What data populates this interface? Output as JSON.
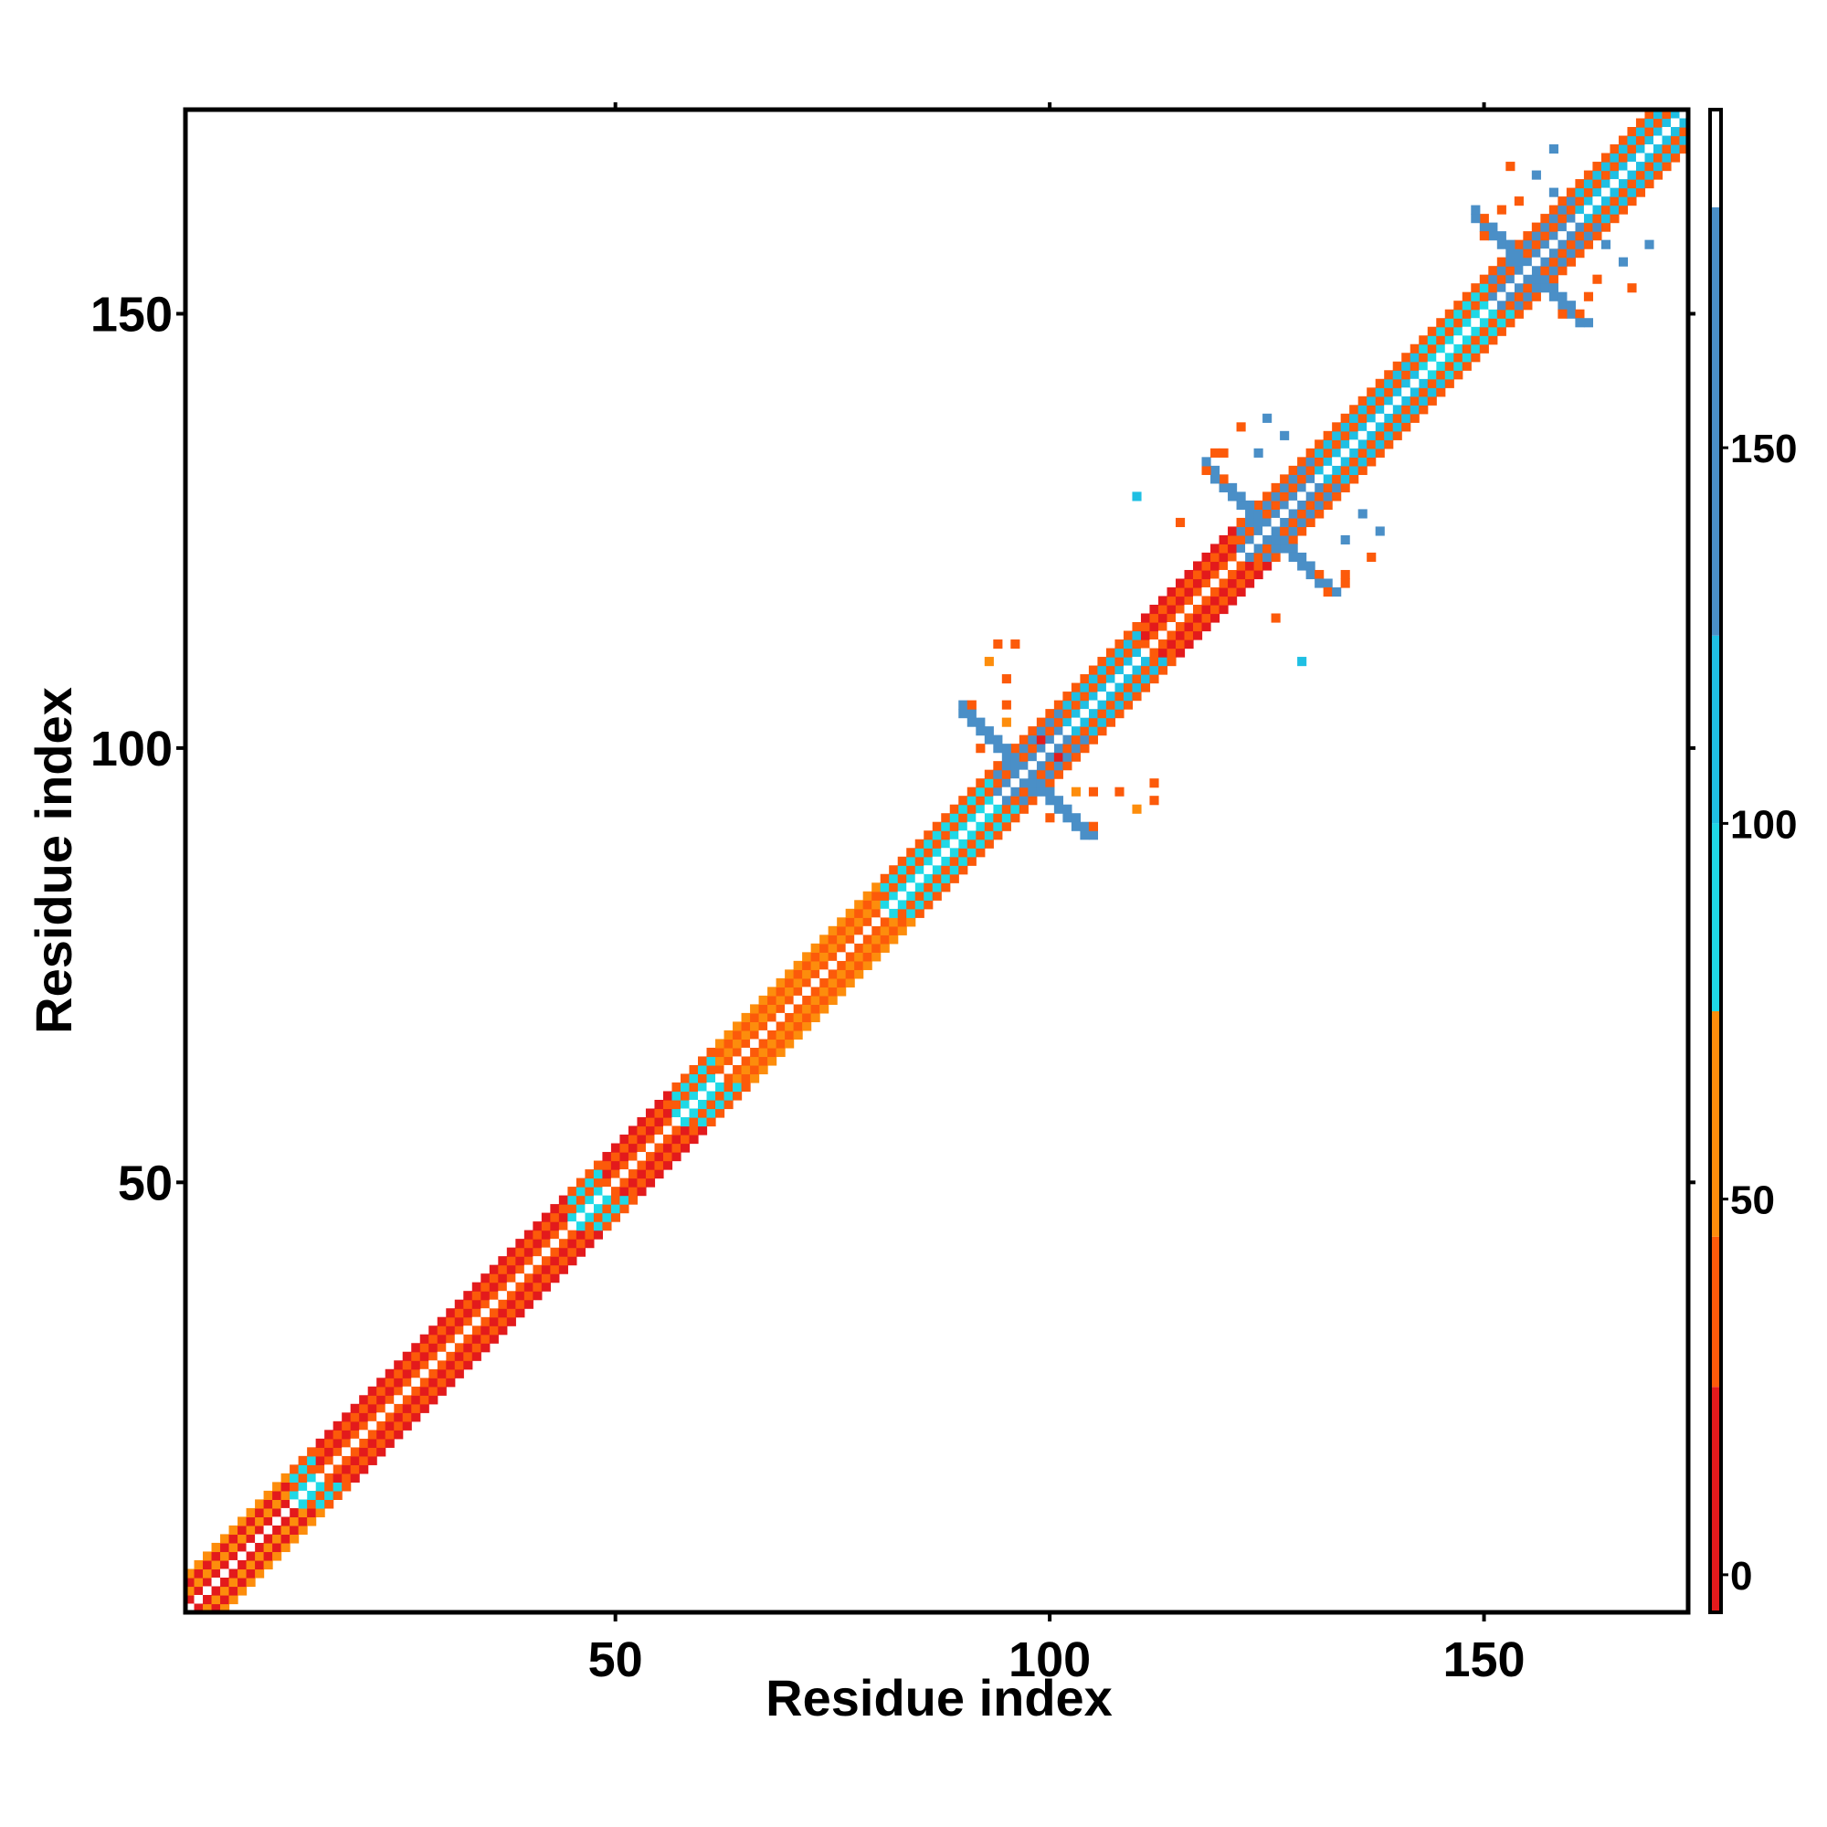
{
  "chart_data": {
    "type": "heatmap",
    "title": "",
    "xlabel": "Residue index",
    "ylabel": "Residue index",
    "x_range": [
      1,
      173
    ],
    "y_range": [
      1,
      173
    ],
    "x_ticks": [
      50,
      100,
      150
    ],
    "y_ticks": [
      50,
      100,
      150
    ],
    "grid": false,
    "symmetric": true,
    "colorbar": {
      "ticks": [
        0,
        50,
        100,
        150
      ],
      "range": [
        -5,
        195
      ],
      "bands": [
        {
          "from": -5,
          "to": 25,
          "color": "#e31a1c"
        },
        {
          "from": 25,
          "to": 45,
          "color": "#fc5a0a"
        },
        {
          "from": 45,
          "to": 75,
          "color": "#fd8d0c"
        },
        {
          "from": 75,
          "to": 100,
          "color": "#1fd8e6"
        },
        {
          "from": 100,
          "to": 125,
          "color": "#1fbfe3"
        },
        {
          "from": 125,
          "to": 182,
          "color": "#4a8fc7"
        },
        {
          "from": 182,
          "to": 195,
          "color": "#ffffff"
        }
      ]
    },
    "diagonal": {
      "from": 1,
      "to": 173,
      "band_width": 4,
      "pattern": "alternating-stripes"
    },
    "diagonal_segments": [
      {
        "from": 1,
        "to": 12,
        "value": 20
      },
      {
        "from": 12,
        "to": 15,
        "value": 90
      },
      {
        "from": 15,
        "to": 44,
        "value": 35
      },
      {
        "from": 44,
        "to": 48,
        "value": 90
      },
      {
        "from": 48,
        "to": 56,
        "value": 40
      },
      {
        "from": 56,
        "to": 61,
        "value": 90
      },
      {
        "from": 61,
        "to": 80,
        "value": 25
      },
      {
        "from": 80,
        "to": 93,
        "value": 90
      },
      {
        "from": 93,
        "to": 101,
        "value": 140
      },
      {
        "from": 101,
        "to": 110,
        "value": 100
      },
      {
        "from": 110,
        "to": 121,
        "value": 40
      },
      {
        "from": 121,
        "to": 130,
        "value": 140
      },
      {
        "from": 130,
        "to": 142,
        "value": 100
      },
      {
        "from": 142,
        "to": 150,
        "value": 90
      },
      {
        "from": 150,
        "to": 160,
        "value": 140
      },
      {
        "from": 160,
        "to": 173,
        "value": 100
      }
    ],
    "cross_contacts": [
      {
        "center": 97,
        "arm_length": 7,
        "value": 140
      },
      {
        "center": 125,
        "arm_length": 7,
        "value": 140
      },
      {
        "center": 155,
        "arm_length": 6,
        "value": 140
      }
    ],
    "off_diagonal_contacts": [
      {
        "i": 91,
        "j": 105,
        "value": 40
      },
      {
        "i": 93,
        "j": 110,
        "value": 45
      },
      {
        "i": 94,
        "j": 112,
        "value": 40
      },
      {
        "i": 99,
        "j": 101,
        "value": 15
      },
      {
        "i": 100,
        "j": 92,
        "value": 40
      },
      {
        "i": 103,
        "j": 95,
        "value": 60
      },
      {
        "i": 105,
        "j": 95,
        "value": 40
      },
      {
        "i": 108,
        "j": 95,
        "value": 40
      },
      {
        "i": 112,
        "j": 96,
        "value": 40
      },
      {
        "i": 115,
        "j": 126,
        "value": 40
      },
      {
        "i": 118,
        "j": 132,
        "value": 40
      },
      {
        "i": 119,
        "j": 134,
        "value": 40
      },
      {
        "i": 124,
        "j": 134,
        "value": 140
      },
      {
        "i": 127,
        "j": 136,
        "value": 140
      },
      {
        "i": 127,
        "j": 124,
        "value": 140
      },
      {
        "i": 131,
        "j": 120,
        "value": 40
      },
      {
        "i": 134,
        "j": 120,
        "value": 40
      },
      {
        "i": 137,
        "j": 122,
        "value": 40
      },
      {
        "i": 138,
        "j": 125,
        "value": 140
      },
      {
        "i": 129,
        "j": 110,
        "value": 100
      },
      {
        "i": 152,
        "j": 162,
        "value": 40
      },
      {
        "i": 153,
        "j": 167,
        "value": 40
      },
      {
        "i": 158,
        "j": 169,
        "value": 140
      },
      {
        "i": 159,
        "j": 150,
        "value": 40
      },
      {
        "i": 161,
        "j": 150,
        "value": 40
      },
      {
        "i": 163,
        "j": 154,
        "value": 40
      },
      {
        "i": 164,
        "j": 158,
        "value": 140
      },
      {
        "i": 166,
        "j": 156,
        "value": 140
      }
    ]
  }
}
